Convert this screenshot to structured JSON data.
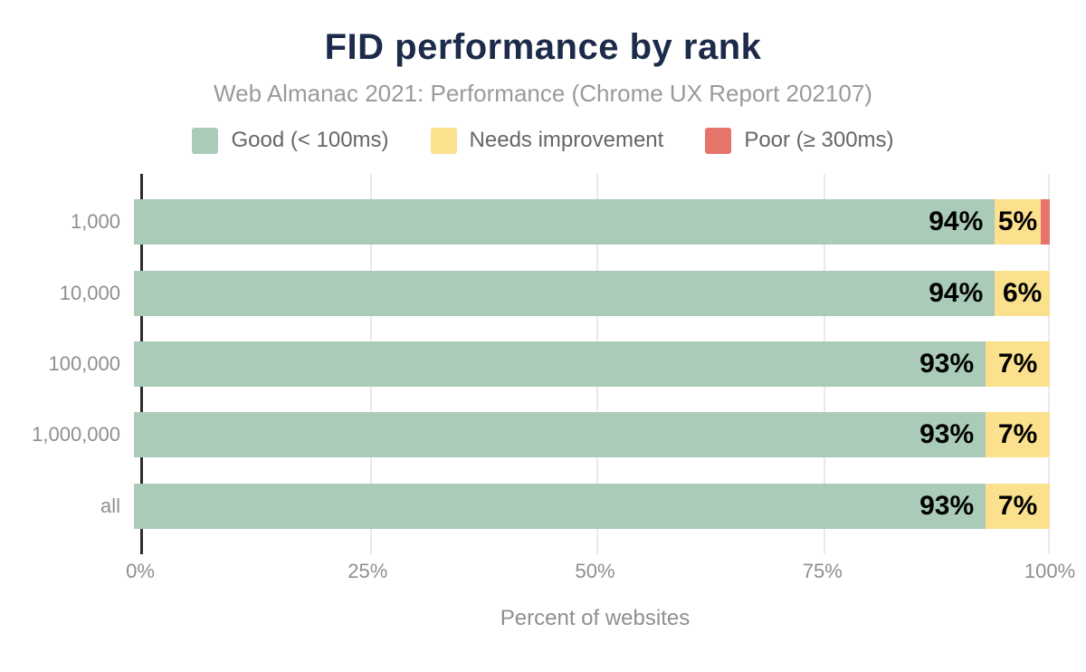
{
  "title": "FID performance by rank",
  "subtitle": "Web Almanac 2021: Performance (Chrome UX Report 202107)",
  "legend": [
    {
      "label": "Good (< 100ms)",
      "color": "#a9cbb8"
    },
    {
      "label": "Needs improvement",
      "color": "#fbe08d"
    },
    {
      "label": "Poor (≥ 300ms)",
      "color": "#e5756a"
    }
  ],
  "chart_data": {
    "type": "bar",
    "orientation": "horizontal",
    "stacked": true,
    "title": "FID performance by rank",
    "subtitle": "Web Almanac 2021: Performance (Chrome UX Report 202107)",
    "categories": [
      "1,000",
      "10,000",
      "100,000",
      "1,000,000",
      "all"
    ],
    "series": [
      {
        "name": "Good (< 100ms)",
        "color": "#a9cbb8",
        "values": [
          94,
          94,
          93,
          93,
          93
        ]
      },
      {
        "name": "Needs improvement",
        "color": "#fbe08d",
        "values": [
          5,
          6,
          7,
          7,
          7
        ]
      },
      {
        "name": "Poor (≥ 300ms)",
        "color": "#e5756a",
        "values": [
          1,
          0,
          0,
          0,
          0
        ]
      }
    ],
    "bar_labels": [
      [
        "94%",
        "5%"
      ],
      [
        "94%",
        "6%"
      ],
      [
        "93%",
        "7%"
      ],
      [
        "93%",
        "7%"
      ],
      [
        "93%",
        "7%"
      ]
    ],
    "xlabel": "Percent of websites",
    "ylabel": "",
    "x_ticks": [
      "0%",
      "25%",
      "50%",
      "75%",
      "100%"
    ],
    "xlim": [
      0,
      100
    ],
    "grid": "vertical",
    "legend_position": "top"
  }
}
